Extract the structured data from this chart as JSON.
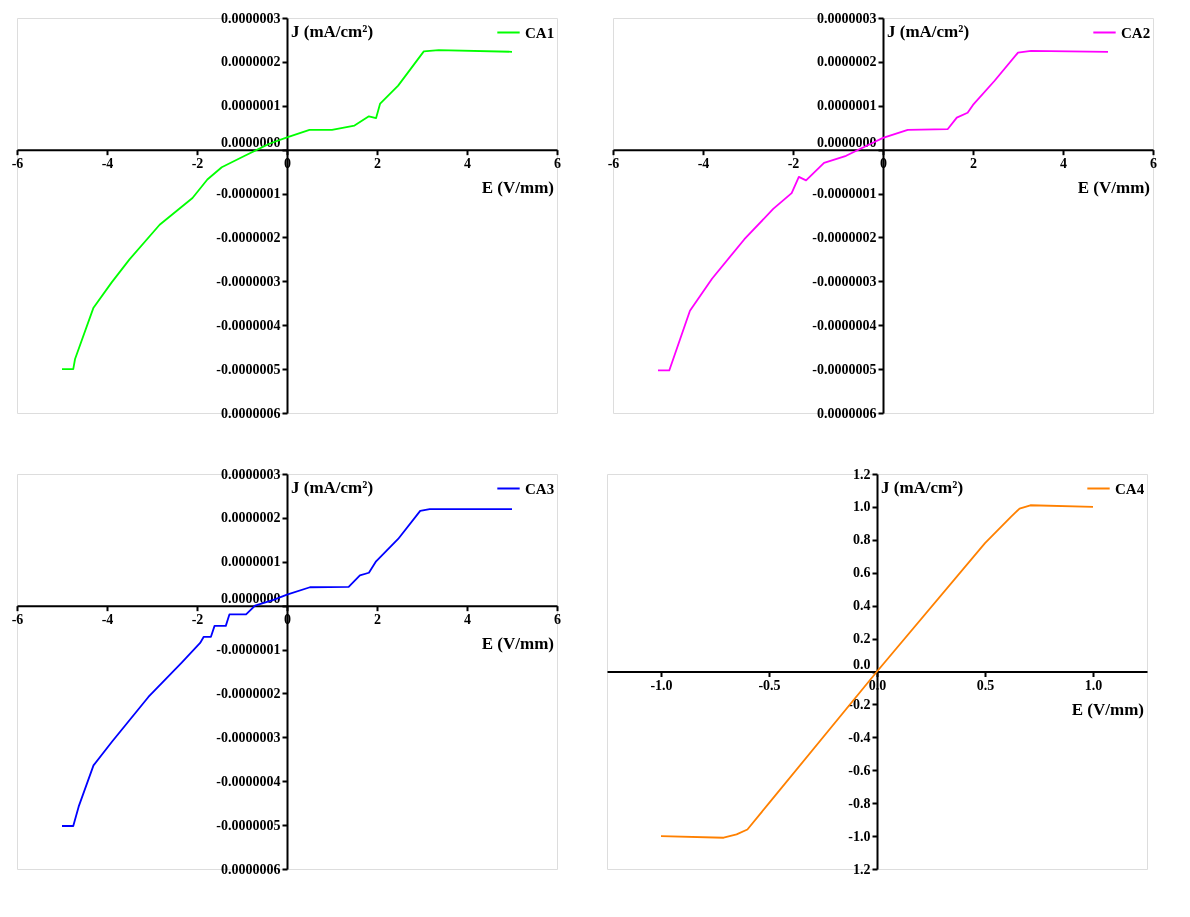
{
  "chart_data": [
    {
      "type": "line",
      "xlabel": "E (V/mm)",
      "ylabel": "J (mA/cm²)",
      "legend": "top right",
      "xlim": [
        -6,
        6
      ],
      "xticks": [
        -6,
        -4,
        -2,
        0,
        2,
        4,
        6
      ],
      "ylim": [
        -6e-07,
        3e-07
      ],
      "yticks": [
        {
          "value": -6e-07,
          "label": "0.0000006"
        },
        {
          "value": -5e-07,
          "label": "-0.0000005"
        },
        {
          "value": -4e-07,
          "label": "-0.0000004"
        },
        {
          "value": -3e-07,
          "label": "-0.0000003"
        },
        {
          "value": -2e-07,
          "label": "-0.0000002"
        },
        {
          "value": -1e-07,
          "label": "-0.0000001"
        },
        {
          "value": 0,
          "label": "0.0000000"
        },
        {
          "value": 1e-07,
          "label": "0.0000001"
        },
        {
          "value": 2e-07,
          "label": "0.0000002"
        },
        {
          "value": 3e-07,
          "label": "0.0000003"
        }
      ],
      "series": [
        {
          "name": "CA1",
          "color": "#00ff00",
          "x": [
            -5,
            -4.75,
            -4.71,
            -4.3,
            -3.9,
            -3.5,
            -2.83,
            -2.1,
            -1.77,
            -1.45,
            -0.96,
            -0.38,
            0,
            0.5,
            1.0,
            1.5,
            1.82,
            1.98,
            2.07,
            2.47,
            3.04,
            3.37,
            5.0
          ],
          "values": [
            -5e-07,
            -5e-07,
            -4.77e-07,
            -3.6e-07,
            -3.03e-07,
            -2.5e-07,
            -1.71e-07,
            -1.1e-07,
            -6.8e-08,
            -4e-08,
            -1.5e-08,
            1.4e-08,
            2.8e-08,
            4.5e-08,
            4.5e-08,
            5.5e-08,
            7.6e-08,
            7.2e-08,
            1.05e-07,
            1.46e-07,
            2.24e-07,
            2.27e-07,
            2.23e-07
          ]
        }
      ]
    },
    {
      "type": "line",
      "xlabel": "E (V/mm)",
      "ylabel": "J (mA/cm²)",
      "legend": "top right",
      "xlim": [
        -6,
        6
      ],
      "xticks": [
        -6,
        -4,
        -2,
        0,
        2,
        4,
        6
      ],
      "ylim": [
        -6e-07,
        3e-07
      ],
      "yticks": [
        {
          "value": -6e-07,
          "label": "0.0000006"
        },
        {
          "value": -5e-07,
          "label": "-0.0000005"
        },
        {
          "value": -4e-07,
          "label": "-0.0000004"
        },
        {
          "value": -3e-07,
          "label": "-0.0000003"
        },
        {
          "value": -2e-07,
          "label": "-0.0000002"
        },
        {
          "value": -1e-07,
          "label": "-0.0000001"
        },
        {
          "value": 0,
          "label": "0.0000000"
        },
        {
          "value": 1e-07,
          "label": "0.0000001"
        },
        {
          "value": 2e-07,
          "label": "0.0000002"
        },
        {
          "value": 3e-07,
          "label": "0.0000003"
        }
      ],
      "series": [
        {
          "name": "CA2",
          "color": "#ff00ff",
          "x": [
            -5,
            -4.75,
            -4.29,
            -3.8,
            -3.08,
            -2.44,
            -2.03,
            -1.87,
            -1.71,
            -1.31,
            -0.82,
            -0.34,
            0,
            0.55,
            1.44,
            1.64,
            1.88,
            2.0,
            2.48,
            3.0,
            3.29,
            5.0
          ],
          "values": [
            -5.03e-07,
            -5.03e-07,
            -3.67e-07,
            -2.94e-07,
            -2.04e-07,
            -1.35e-07,
            -9.9e-08,
            -6.2e-08,
            -7e-08,
            -3e-08,
            -1.4e-08,
            1e-08,
            2.7e-08,
            4.5e-08,
            4.7e-08,
            7.3e-08,
            8.4e-08,
            1.02e-07,
            1.57e-07,
            2.21e-07,
            2.25e-07,
            2.23e-07
          ]
        }
      ]
    },
    {
      "type": "line",
      "xlabel": "E (V/mm)",
      "ylabel": "J (mA/cm²)",
      "legend": "top right",
      "xlim": [
        -6,
        6
      ],
      "xticks": [
        -6,
        -4,
        -2,
        0,
        2,
        4,
        6
      ],
      "ylim": [
        -6e-07,
        3e-07
      ],
      "yticks": [
        {
          "value": -6e-07,
          "label": "0.0000006"
        },
        {
          "value": -5e-07,
          "label": "-0.0000005"
        },
        {
          "value": -4e-07,
          "label": "-0.0000004"
        },
        {
          "value": -3e-07,
          "label": "-0.0000003"
        },
        {
          "value": -2e-07,
          "label": "-0.0000002"
        },
        {
          "value": -1e-07,
          "label": "-0.0000001"
        },
        {
          "value": 0,
          "label": "0.0000000"
        },
        {
          "value": 1e-07,
          "label": "0.0000001"
        },
        {
          "value": 2e-07,
          "label": "0.0000002"
        },
        {
          "value": 3e-07,
          "label": "0.0000003"
        }
      ],
      "series": [
        {
          "name": "CA3",
          "color": "#0000ff",
          "x": [
            -5,
            -4.75,
            -4.63,
            -4.3,
            -3.89,
            -3.08,
            -2.34,
            -1.93,
            -1.85,
            -1.69,
            -1.61,
            -1.36,
            -1.28,
            -0.91,
            -0.71,
            -0.3,
            0,
            0.51,
            1.37,
            1.62,
            1.82,
            1.98,
            2.47,
            2.96,
            3.17,
            5.0
          ],
          "values": [
            -5.02e-07,
            -5.02e-07,
            -4.58e-07,
            -3.64e-07,
            -3.1e-07,
            -2.08e-07,
            -1.3e-07,
            -8.5e-08,
            -7.1e-08,
            -7.1e-08,
            -4.6e-08,
            -4.6e-08,
            -2e-08,
            -2e-08,
            0,
            1.3e-08,
            2.5e-08,
            4.2e-08,
            4.3e-08,
            6.9e-08,
            7.5e-08,
            1.01e-07,
            1.52e-07,
            2.16e-07,
            2.2e-07,
            2.2e-07
          ]
        }
      ]
    },
    {
      "type": "line",
      "xlabel": "E (V/mm)",
      "ylabel": "J (mA/cm²)",
      "legend": "top right",
      "xlim": [
        -1.25,
        1.25
      ],
      "xticks": [
        {
          "value": -1.0,
          "label": "-1.0"
        },
        {
          "value": -0.5,
          "label": "-0.5"
        },
        {
          "value": 0,
          "label": "0.0"
        },
        {
          "value": 0.5,
          "label": "0.5"
        },
        {
          "value": 1.0,
          "label": "1.0"
        }
      ],
      "ylim": [
        -1.2,
        1.2
      ],
      "yticks": [
        {
          "value": -1.2,
          "label": "1.2"
        },
        {
          "value": -1.0,
          "label": "-1.0"
        },
        {
          "value": -0.8,
          "label": "-0.8"
        },
        {
          "value": -0.6,
          "label": "-0.6"
        },
        {
          "value": -0.4,
          "label": "-0.4"
        },
        {
          "value": -0.2,
          "label": "-0.2"
        },
        {
          "value": 0,
          "label": "0.0"
        },
        {
          "value": 0.2,
          "label": "0.2"
        },
        {
          "value": 0.4,
          "label": "0.4"
        },
        {
          "value": 0.6,
          "label": "0.6"
        },
        {
          "value": 0.8,
          "label": "0.8"
        },
        {
          "value": 1.0,
          "label": "1.0"
        },
        {
          "value": 1.2,
          "label": "1.2"
        }
      ],
      "series": [
        {
          "name": "CA4",
          "color": "#ff8000",
          "x": [
            -1.0,
            -0.71,
            -0.65,
            -0.6,
            -0.5,
            0,
            0.5,
            0.62,
            0.66,
            0.71,
            1.0
          ],
          "values": [
            -1.0,
            -1.01,
            -0.99,
            -0.96,
            -0.8,
            0,
            0.78,
            0.94,
            0.99,
            1.01,
            1.0
          ]
        }
      ]
    }
  ]
}
